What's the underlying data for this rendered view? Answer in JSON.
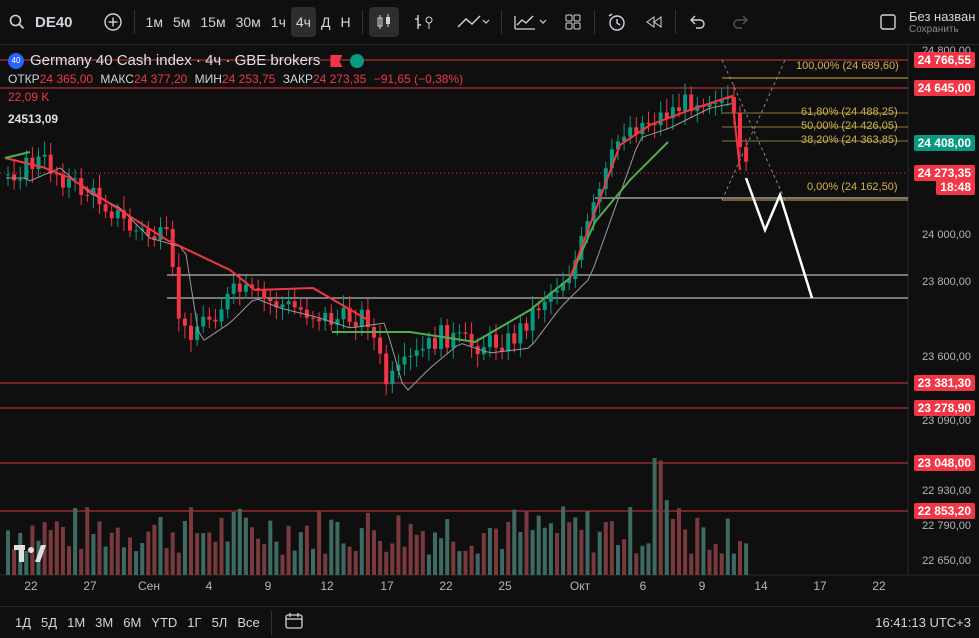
{
  "toolbar": {
    "symbol": "DE40",
    "intervals": [
      "1м",
      "5м",
      "15м",
      "30м",
      "1ч",
      "4ч",
      "Д",
      "Н"
    ],
    "active_interval": "4ч",
    "account_text": "Без назван",
    "save_text": "Сохранить"
  },
  "legend": {
    "badge": "40",
    "title": "Germany 40 Cash index · 4ч · GBE brokers",
    "open_label": "ОТКР",
    "open": "24 365,00",
    "high_label": "МАКС",
    "high": "24 377,20",
    "low_label": "МИН",
    "low": "24 253,75",
    "close_label": "ЗАКР",
    "close": "24 273,35",
    "change": "−91,65 (−0,38%)",
    "volume": "22,09 K",
    "indicator_value": "24513,09"
  },
  "price_axis": {
    "ticks": [
      "24 800,00",
      "24 000,00",
      "23 800,00",
      "23 600,00",
      "23 090,00",
      "22 930,00",
      "22 790,00",
      "22 650,00"
    ],
    "boxes": [
      {
        "label": "24 766,55",
        "color": "#f23645"
      },
      {
        "label": "24 645,00",
        "color": "#f23645"
      },
      {
        "label": "24 408,00",
        "color": "#089981"
      },
      {
        "label": "24 273,35",
        "color": "#f23645"
      },
      {
        "label": "18:48",
        "color": "#f23645"
      },
      {
        "label": "23 381,30",
        "color": "#f23645"
      },
      {
        "label": "23 278,90",
        "color": "#f23645"
      },
      {
        "label": "23 048,00",
        "color": "#f23645"
      },
      {
        "label": "22 853,20",
        "color": "#f23645"
      }
    ]
  },
  "fib_levels": [
    {
      "label": "100,00% (24 689,60)"
    },
    {
      "label": "61,80% (24 488,25)"
    },
    {
      "label": "50,00% (24 426,05)"
    },
    {
      "label": "38,20% (24 363,85)"
    },
    {
      "label": "0,00% (24 162,50)"
    }
  ],
  "time_axis": [
    "22",
    "27",
    "Сен",
    "4",
    "9",
    "12",
    "17",
    "22",
    "25",
    "Окт",
    "6",
    "9",
    "14",
    "17",
    "22"
  ],
  "bottom": {
    "ranges": [
      "1Д",
      "5Д",
      "1М",
      "3М",
      "6М",
      "YTD",
      "1Г",
      "5Л",
      "Все"
    ],
    "clock": "16:41:13 UTC+3"
  },
  "colors": {
    "bull": "#089981",
    "bear": "#f23645",
    "fib": "#d2b24c",
    "background": "#0f0f0f"
  }
}
